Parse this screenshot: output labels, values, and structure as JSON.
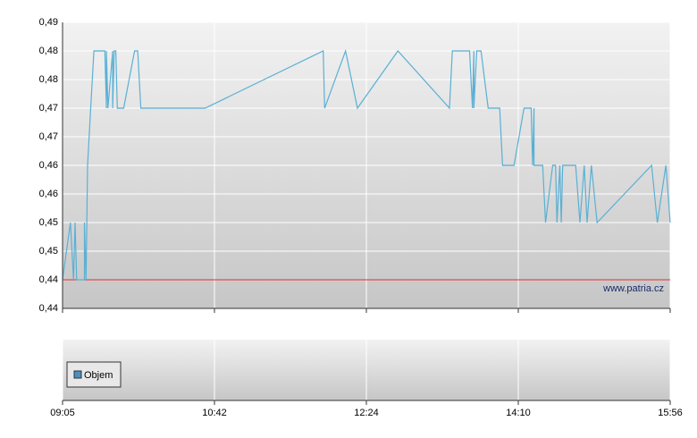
{
  "chart_data": [
    {
      "type": "line",
      "annotation": "www.patria.cz",
      "xlim": [
        545,
        956
      ],
      "xticks": [
        {
          "value": 545,
          "label": "09:05"
        },
        {
          "value": 642,
          "label": "10:42"
        },
        {
          "value": 744,
          "label": "12:24"
        },
        {
          "value": 850,
          "label": "14:10"
        },
        {
          "value": 956,
          "label": "15:56"
        }
      ],
      "ylim": [
        0.44,
        0.49
      ],
      "yticks": [
        {
          "value": 0.44,
          "label": "0,44"
        },
        {
          "value": 0.445,
          "label": "0,44"
        },
        {
          "value": 0.45,
          "label": "0,45"
        },
        {
          "value": 0.455,
          "label": "0,45"
        },
        {
          "value": 0.46,
          "label": "0,46"
        },
        {
          "value": 0.465,
          "label": "0,46"
        },
        {
          "value": 0.47,
          "label": "0,47"
        },
        {
          "value": 0.475,
          "label": "0,47"
        },
        {
          "value": 0.48,
          "label": "0,48"
        },
        {
          "value": 0.485,
          "label": "0,48"
        },
        {
          "value": 0.49,
          "label": "0,49"
        }
      ],
      "grid": true,
      "reference_line": {
        "value": 0.445,
        "color": "#e03030"
      },
      "x": [
        545,
        550,
        552,
        553,
        554,
        559,
        559,
        560,
        561,
        563,
        565,
        572,
        573,
        573,
        574,
        577,
        577,
        578,
        579,
        580,
        581,
        584,
        591,
        593,
        595,
        636,
        715,
        716,
        730,
        738,
        766,
        802,
        804,
        816,
        818,
        819,
        819,
        821,
        824,
        829,
        837,
        839,
        847,
        854,
        859,
        860,
        861,
        861,
        867,
        869,
        874,
        876,
        877,
        879,
        880,
        881,
        890,
        893,
        896,
        898,
        901,
        905,
        943,
        947,
        953,
        956
      ],
      "series": [
        {
          "color": "#5ab0d4",
          "values": [
            0.445,
            0.455,
            0.445,
            0.455,
            0.445,
            0.445,
            0.455,
            0.445,
            0.465,
            0.475,
            0.485,
            0.485,
            0.475,
            0.485,
            0.475,
            0.485,
            0.475,
            0.485,
            0.485,
            0.475,
            0.475,
            0.475,
            0.485,
            0.485,
            0.475,
            0.475,
            0.485,
            0.475,
            0.485,
            0.475,
            0.485,
            0.475,
            0.485,
            0.485,
            0.475,
            0.485,
            0.475,
            0.485,
            0.485,
            0.475,
            0.475,
            0.465,
            0.465,
            0.475,
            0.475,
            0.465,
            0.475,
            0.465,
            0.465,
            0.455,
            0.465,
            0.465,
            0.455,
            0.465,
            0.455,
            0.465,
            0.465,
            0.455,
            0.465,
            0.455,
            0.465,
            0.455,
            0.465,
            0.455,
            0.465,
            0.455
          ]
        }
      ]
    },
    {
      "type": "bar",
      "series": [
        {
          "name": "Objem",
          "color": "#4a90c0",
          "values": []
        }
      ]
    }
  ]
}
